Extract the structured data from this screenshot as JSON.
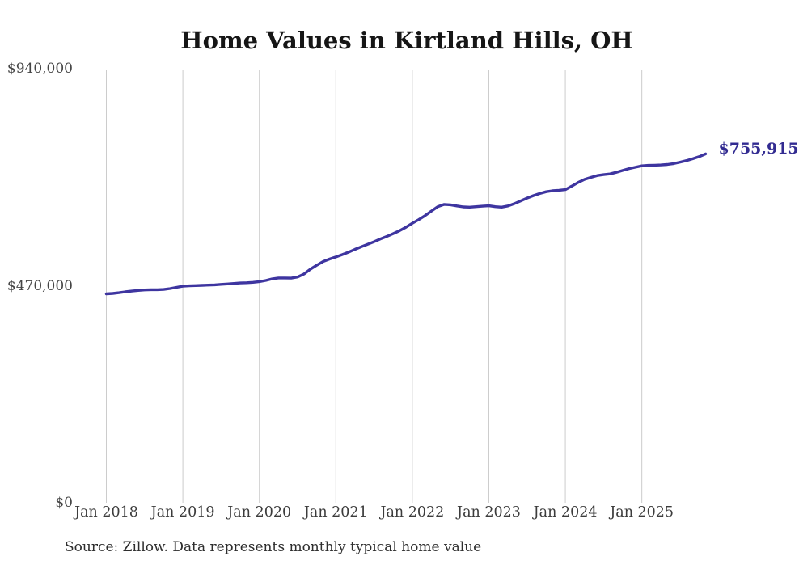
{
  "page": {
    "background_color": "#ffffff"
  },
  "chart": {
    "title": "Home Values in Kirtland Hills, OH",
    "end_label": "$755,915",
    "source_note": "Source: Zillow. Data represents monthly typical home value",
    "line_color": "#3e35a0",
    "end_label_color": "#322b91",
    "grid_color": "#cccccc",
    "title_color": "#161616",
    "axis_text_color": "#454545"
  },
  "chart_data": {
    "type": "line",
    "title": "Home Values in Kirtland Hills, OH",
    "xlabel": "",
    "ylabel": "",
    "ylim": [
      0,
      940000
    ],
    "grid": "vertical-only",
    "legend": "none",
    "y_ticks": [
      {
        "value": 0,
        "label": "$0"
      },
      {
        "value": 470000,
        "label": "$470,000"
      },
      {
        "value": 940000,
        "label": "$940,000"
      }
    ],
    "x_tick_labels": [
      "Jan 2018",
      "Jan 2019",
      "Jan 2020",
      "Jan 2021",
      "Jan 2022",
      "Jan 2023",
      "Jan 2024",
      "Jan 2025"
    ],
    "annotation": {
      "text": "$755,915",
      "attached_to": "last-point"
    },
    "series": [
      {
        "name": "Monthly typical home value",
        "frequency": "monthly",
        "start_month": "2018-01",
        "end_month": "2025-11",
        "final_value": 755915,
        "values": [
          452500,
          453500,
          455000,
          457000,
          458500,
          460000,
          461000,
          461500,
          461500,
          462000,
          464000,
          466500,
          469000,
          470000,
          470500,
          471000,
          471500,
          472000,
          473000,
          474000,
          475000,
          476000,
          476500,
          477500,
          479000,
          481500,
          485000,
          487000,
          487000,
          486500,
          489000,
          495500,
          506000,
          514500,
          522500,
          528000,
          532500,
          537500,
          543000,
          549000,
          554500,
          560000,
          565500,
          571500,
          577000,
          583000,
          589500,
          597000,
          605500,
          613500,
          622000,
          632000,
          641500,
          646500,
          645500,
          643000,
          641000,
          640500,
          641500,
          642500,
          643500,
          641500,
          640500,
          643000,
          648000,
          654000,
          660000,
          665500,
          670000,
          674000,
          676000,
          677000,
          678500,
          686000,
          694000,
          700500,
          705000,
          709000,
          711000,
          712500,
          716000,
          720000,
          724000,
          727000,
          730000,
          731000,
          731500,
          732000,
          733000,
          735000,
          738000,
          741500,
          745500,
          750000,
          755915
        ]
      }
    ]
  }
}
